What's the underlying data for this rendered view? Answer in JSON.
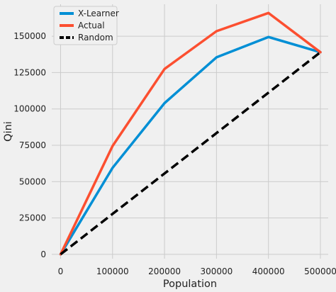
{
  "chart_data": {
    "type": "line",
    "title": "",
    "xlabel": "Population",
    "ylabel": "Qini",
    "x": [
      0,
      100000,
      200000,
      300000,
      400000,
      500000
    ],
    "series": [
      {
        "name": "X-Learner",
        "values": [
          0,
          59500,
          104000,
          135500,
          149500,
          139000
        ],
        "color": "#008fd5",
        "dash": "solid"
      },
      {
        "name": "Actual",
        "values": [
          0,
          74500,
          127500,
          153500,
          166000,
          139000
        ],
        "color": "#fc4f30",
        "dash": "solid"
      },
      {
        "name": "Random",
        "values": [
          0,
          27800,
          55600,
          83400,
          111200,
          139000
        ],
        "color": "#000000",
        "dash": "dashed"
      }
    ],
    "xlim": [
      -17000,
      515000
    ],
    "ylim": [
      -3000,
      172000
    ],
    "xticks": [
      0,
      100000,
      200000,
      300000,
      400000,
      500000
    ],
    "yticks": [
      0,
      25000,
      50000,
      75000,
      100000,
      125000,
      150000
    ],
    "grid": true,
    "legend_position": "top-left",
    "background": "#f0f0f0",
    "grid_color": "#cbcbcb"
  }
}
